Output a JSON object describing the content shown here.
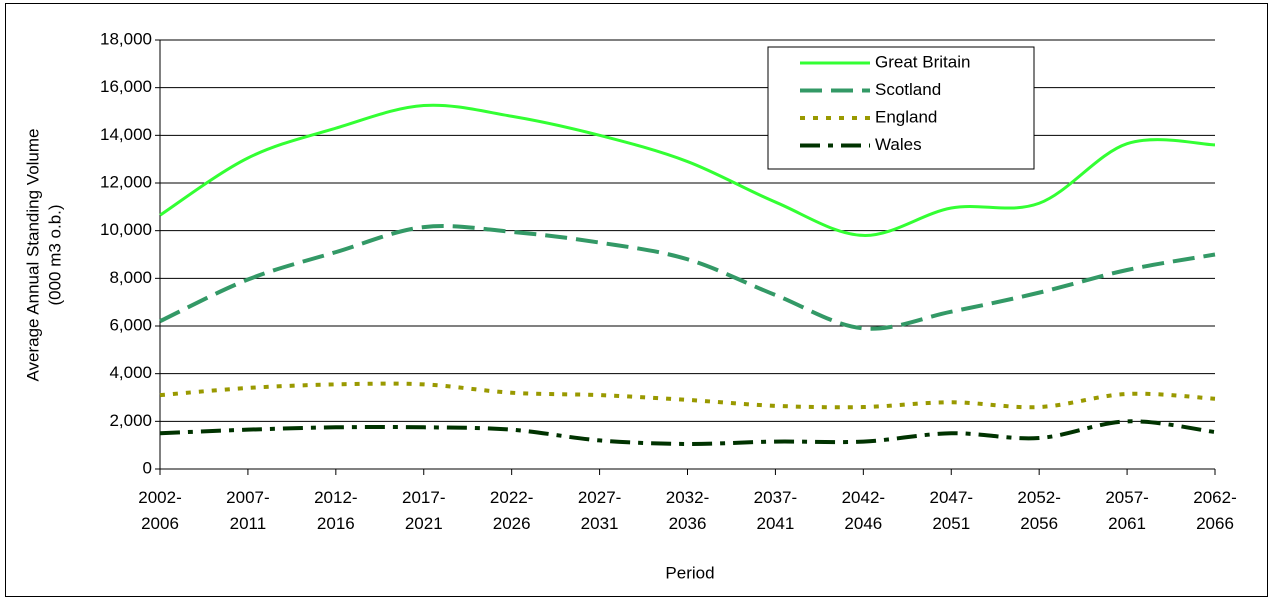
{
  "chart_data": {
    "type": "line",
    "xlabel": "Period",
    "ylabel": [
      "Average Annual Standing Volume",
      "(000 m3 o.b.)"
    ],
    "categories": [
      "2002-\n2006",
      "2007-\n2011",
      "2012-\n2016",
      "2017-\n2021",
      "2022-\n2026",
      "2027-\n2031",
      "2032-\n2036",
      "2037-\n2041",
      "2042-\n2046",
      "2047-\n2051",
      "2052-\n2056",
      "2057-\n2061",
      "2062-\n2066"
    ],
    "series": [
      {
        "name": "Great Britain",
        "color": "#33ff33",
        "dash": "solid",
        "values": [
          10650,
          13050,
          14300,
          15250,
          14800,
          14000,
          12900,
          11200,
          9800,
          10950,
          11150,
          13650,
          13600
        ]
      },
      {
        "name": "Scotland",
        "color": "#339966",
        "dash": "dashed",
        "values": [
          6200,
          7950,
          9100,
          10150,
          9950,
          9500,
          8800,
          7300,
          5900,
          6600,
          7400,
          8350,
          9000
        ]
      },
      {
        "name": "England",
        "color": "#999900",
        "dash": "dotted",
        "values": [
          3100,
          3400,
          3550,
          3550,
          3200,
          3100,
          2900,
          2650,
          2600,
          2800,
          2600,
          3150,
          2950
        ]
      },
      {
        "name": "Wales",
        "color": "#003300",
        "dash": "dashdot",
        "values": [
          1500,
          1650,
          1750,
          1750,
          1650,
          1200,
          1050,
          1150,
          1150,
          1500,
          1300,
          2000,
          1550
        ]
      }
    ],
    "ylim": [
      0,
      18000
    ],
    "yticks": [
      0,
      {
        "value": 2000,
        "label": "2,000"
      },
      {
        "value": 4000,
        "label": "4,000"
      },
      {
        "value": 6000,
        "label": "6,000"
      },
      {
        "value": 8000,
        "label": "8,000"
      },
      {
        "value": 10000,
        "label": "10,000"
      },
      {
        "value": 12000,
        "label": "12,000"
      },
      {
        "value": 14000,
        "label": "14,000"
      },
      {
        "value": 16000,
        "label": "16,000"
      },
      {
        "value": 18000,
        "label": "18,000"
      }
    ],
    "grid": true,
    "legend": "top-right"
  }
}
